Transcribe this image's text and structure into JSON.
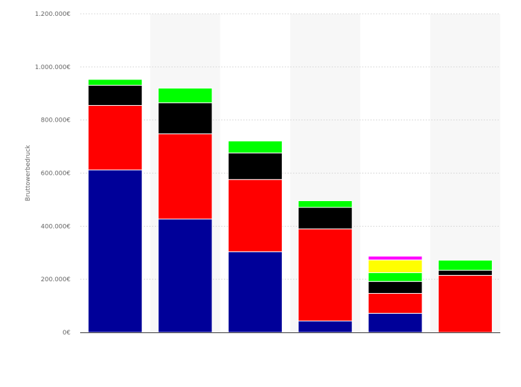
{
  "chart_data": {
    "type": "bar",
    "stacked": true,
    "ylabel": "Bruttowerbedruck",
    "xlabel": "",
    "ylim": [
      0,
      1200000
    ],
    "y_ticks": [
      0,
      200000,
      400000,
      600000,
      800000,
      1000000,
      1200000
    ],
    "y_tick_labels": [
      "0€",
      "200.000€",
      "400.000€",
      "600.000€",
      "800.000€",
      "1.000.000€",
      "1.200.000€"
    ],
    "categories": [
      "",
      "",
      "",
      "",
      "",
      ""
    ],
    "grid": true,
    "legend": "none",
    "series": [
      {
        "color": "#000099",
        "values": [
          612000,
          427000,
          304000,
          43000,
          72000,
          0
        ]
      },
      {
        "color": "#ff0000",
        "values": [
          243000,
          321000,
          272000,
          347000,
          75000,
          215000
        ]
      },
      {
        "color": "#000000",
        "values": [
          76000,
          117000,
          100000,
          81000,
          45000,
          19000
        ]
      },
      {
        "color": "#00ff00",
        "values": [
          22000,
          55000,
          45000,
          25000,
          33000,
          38000
        ]
      },
      {
        "color": "#ffff00",
        "values": [
          0,
          0,
          0,
          0,
          48000,
          0
        ]
      },
      {
        "color": "#ff00ff",
        "values": [
          0,
          0,
          0,
          0,
          14000,
          0
        ]
      }
    ]
  }
}
